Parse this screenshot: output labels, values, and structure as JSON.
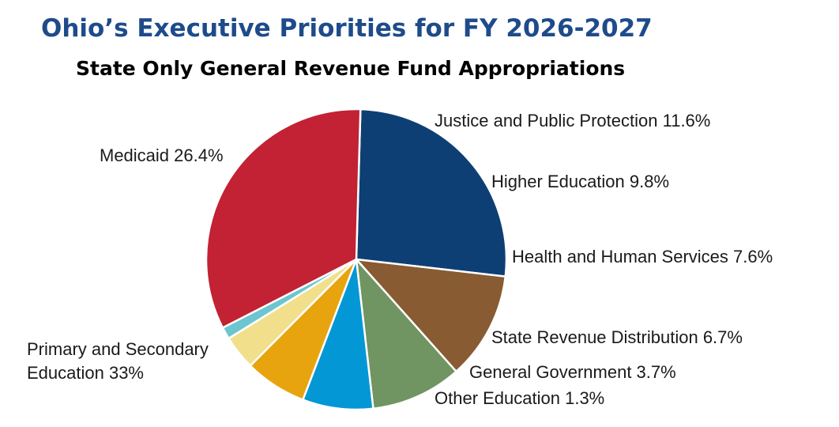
{
  "chart_data": {
    "type": "pie",
    "title": "Ohio’s Executive Priorities for FY 2026-2027",
    "subtitle": "State Only General Revenue Fund Appropriations",
    "slices": [
      {
        "label": "Medicaid 26.4%",
        "value": 26.4,
        "color": "#0e3f74"
      },
      {
        "label": "Justice and Public Protection 11.6%",
        "value": 11.6,
        "color": "#885b32"
      },
      {
        "label": "Higher Education 9.8%",
        "value": 9.8,
        "color": "#709462"
      },
      {
        "label": "Health and Human Services 7.6%",
        "value": 7.6,
        "color": "#0397d6"
      },
      {
        "label": "State Revenue Distribution 6.7%",
        "value": 6.7,
        "color": "#e8a40e"
      },
      {
        "label": "General Government 3.7%",
        "value": 3.7,
        "color": "#f1df8c"
      },
      {
        "label": "Other Education 1.3%",
        "value": 1.3,
        "color": "#6cc5cf"
      },
      {
        "label": "Primary and Secondary Education 33%",
        "value": 33,
        "color": "#c22233"
      }
    ]
  }
}
